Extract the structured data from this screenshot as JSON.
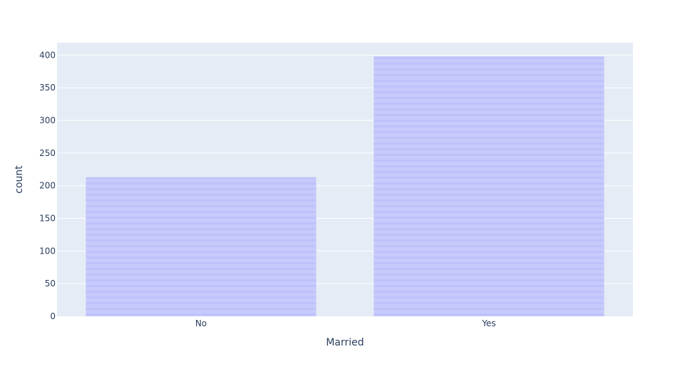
{
  "chart_data": {
    "type": "bar",
    "categories": [
      "No",
      "Yes"
    ],
    "values": [
      213,
      398
    ],
    "xlabel": "Married",
    "ylabel": "count",
    "ylim": [
      0,
      419
    ],
    "yticks": [
      0,
      50,
      100,
      150,
      200,
      250,
      300,
      350,
      400
    ],
    "grid": true,
    "colors": {
      "plot_background": "#e5ecf6",
      "gridline": "#ffffff",
      "bar_fill": "#c7cafb",
      "bar_stripe": "#bec2fa",
      "text": "#2a3f5f"
    }
  }
}
